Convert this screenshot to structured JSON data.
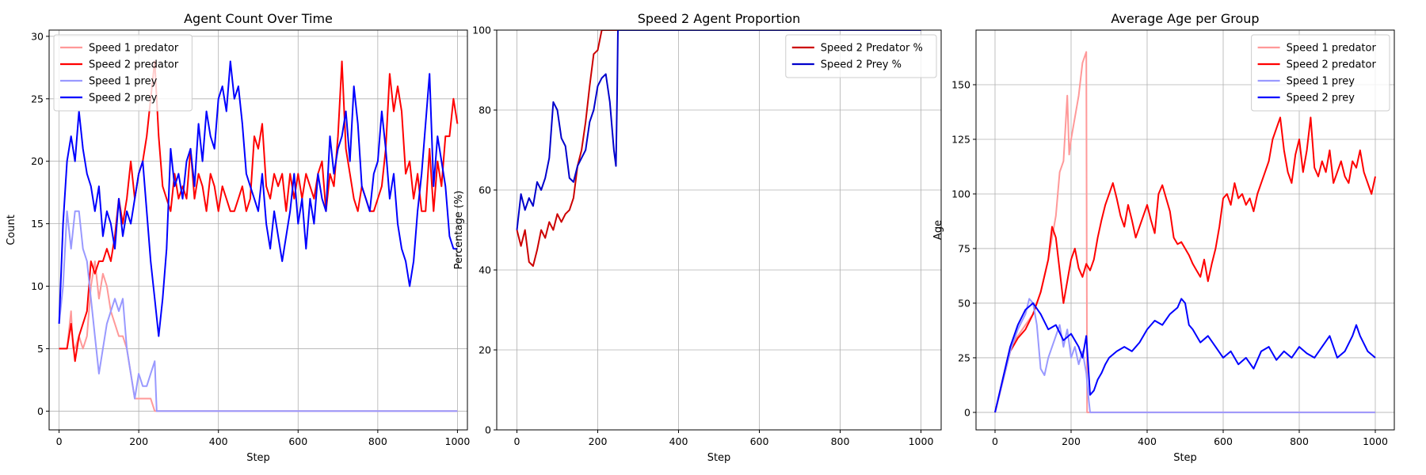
{
  "chart_data": [
    {
      "type": "line",
      "title": "Agent Count Over Time",
      "xlabel": "Step",
      "ylabel": "Count",
      "xlim": [
        -25,
        1025
      ],
      "ylim": [
        -1.5,
        30.5
      ],
      "xticks": [
        0,
        200,
        400,
        600,
        800,
        1000
      ],
      "yticks": [
        0,
        5,
        10,
        15,
        20,
        25,
        30
      ],
      "grid": true,
      "legend_position": "top-left",
      "series": [
        {
          "name": "Speed 1 predator",
          "color": "#ff9999",
          "x": [
            0,
            20,
            30,
            35,
            40,
            50,
            60,
            70,
            80,
            90,
            100,
            110,
            120,
            130,
            140,
            150,
            160,
            170,
            180,
            190,
            200,
            210,
            220,
            230,
            240,
            245,
            250,
            1000
          ],
          "y": [
            5,
            5,
            8,
            5,
            5,
            6,
            5,
            6,
            10,
            12,
            9,
            11,
            10,
            8,
            7,
            6,
            6,
            5,
            3,
            1,
            1,
            1,
            1,
            1,
            0,
            0,
            0,
            0
          ]
        },
        {
          "name": "Speed 2 predator",
          "color": "#ff0000",
          "x": [
            0,
            10,
            20,
            30,
            40,
            50,
            60,
            70,
            80,
            90,
            100,
            110,
            120,
            130,
            140,
            150,
            160,
            170,
            180,
            190,
            200,
            210,
            220,
            230,
            240,
            250,
            260,
            270,
            280,
            290,
            300,
            310,
            320,
            330,
            340,
            350,
            360,
            370,
            380,
            390,
            400,
            410,
            420,
            430,
            440,
            450,
            460,
            470,
            480,
            490,
            500,
            510,
            520,
            530,
            540,
            550,
            560,
            570,
            580,
            590,
            600,
            610,
            620,
            630,
            640,
            650,
            660,
            670,
            680,
            690,
            700,
            710,
            720,
            730,
            740,
            750,
            760,
            770,
            780,
            790,
            800,
            810,
            820,
            830,
            840,
            850,
            860,
            870,
            880,
            890,
            900,
            910,
            920,
            930,
            940,
            950,
            960,
            970,
            980,
            990,
            1000
          ],
          "y": [
            5,
            5,
            5,
            7,
            4,
            6,
            7,
            8,
            12,
            11,
            12,
            12,
            13,
            12,
            14,
            17,
            15,
            17,
            20,
            17,
            19,
            20,
            22,
            25,
            28,
            22,
            18,
            17,
            16,
            19,
            17,
            18,
            17,
            21,
            17,
            19,
            18,
            16,
            19,
            18,
            16,
            18,
            17,
            16,
            16,
            17,
            18,
            16,
            17,
            22,
            21,
            23,
            18,
            17,
            19,
            18,
            19,
            16,
            19,
            17,
            19,
            17,
            19,
            18,
            17,
            19,
            20,
            16,
            19,
            18,
            22,
            28,
            21,
            19,
            17,
            16,
            18,
            17,
            16,
            16,
            17,
            18,
            21,
            27,
            24,
            26,
            24,
            19,
            20,
            17,
            19,
            16,
            16,
            21,
            16,
            20,
            18,
            22,
            22,
            25,
            23
          ]
        },
        {
          "name": "Speed 1 prey",
          "color": "#9999ff",
          "x": [
            0,
            10,
            20,
            30,
            40,
            50,
            60,
            70,
            80,
            90,
            100,
            110,
            120,
            130,
            140,
            150,
            160,
            170,
            180,
            190,
            200,
            210,
            220,
            230,
            240,
            245,
            250,
            1000
          ],
          "y": [
            7,
            10,
            16,
            13,
            16,
            16,
            13,
            12,
            9,
            6,
            3,
            5,
            7,
            8,
            9,
            8,
            9,
            5,
            3,
            1,
            3,
            2,
            2,
            3,
            4,
            0,
            0,
            0
          ]
        },
        {
          "name": "Speed 2 prey",
          "color": "#0000ff",
          "x": [
            0,
            10,
            20,
            30,
            40,
            50,
            60,
            70,
            80,
            90,
            100,
            110,
            120,
            130,
            140,
            150,
            160,
            170,
            180,
            190,
            200,
            210,
            220,
            230,
            240,
            250,
            260,
            270,
            280,
            290,
            300,
            310,
            320,
            330,
            340,
            350,
            360,
            370,
            380,
            390,
            400,
            410,
            420,
            430,
            440,
            450,
            460,
            470,
            480,
            490,
            500,
            510,
            520,
            530,
            540,
            550,
            560,
            570,
            580,
            590,
            600,
            610,
            620,
            630,
            640,
            650,
            660,
            670,
            680,
            690,
            700,
            710,
            720,
            730,
            740,
            750,
            760,
            770,
            780,
            790,
            800,
            810,
            820,
            830,
            840,
            850,
            860,
            870,
            880,
            890,
            900,
            910,
            920,
            930,
            940,
            950,
            960,
            970,
            980,
            990,
            1000
          ],
          "y": [
            7,
            15,
            20,
            22,
            20,
            24,
            21,
            19,
            18,
            16,
            18,
            14,
            16,
            15,
            13,
            17,
            14,
            16,
            15,
            17,
            19,
            20,
            16,
            12,
            9,
            6,
            9,
            13,
            21,
            18,
            19,
            17,
            20,
            21,
            18,
            23,
            20,
            24,
            22,
            21,
            25,
            26,
            24,
            28,
            25,
            26,
            23,
            19,
            18,
            17,
            16,
            19,
            15,
            13,
            16,
            14,
            12,
            14,
            16,
            19,
            15,
            17,
            13,
            17,
            15,
            19,
            17,
            16,
            22,
            19,
            21,
            22,
            24,
            20,
            26,
            23,
            18,
            17,
            16,
            19,
            20,
            24,
            21,
            17,
            19,
            15,
            13,
            12,
            10,
            12,
            16,
            19,
            23,
            27,
            18,
            22,
            20,
            18,
            14,
            13,
            13
          ]
        }
      ]
    },
    {
      "type": "line",
      "title": "Speed 2 Agent Proportion",
      "xlabel": "Step",
      "ylabel": "Percentage (%)",
      "xlim": [
        -50,
        1050
      ],
      "ylim": [
        0,
        100
      ],
      "xticks": [
        0,
        200,
        400,
        600,
        800,
        1000
      ],
      "yticks": [
        0,
        20,
        40,
        60,
        80,
        100
      ],
      "grid": true,
      "legend_position": "top-right",
      "series": [
        {
          "name": "Speed 2 Predator %",
          "color": "#cc0000",
          "x": [
            0,
            10,
            20,
            30,
            40,
            50,
            60,
            70,
            80,
            90,
            100,
            110,
            120,
            130,
            140,
            150,
            160,
            170,
            180,
            190,
            200,
            210,
            220,
            230,
            240,
            1000
          ],
          "y": [
            50,
            46,
            50,
            42,
            41,
            45,
            50,
            48,
            52,
            50,
            54,
            52,
            54,
            55,
            58,
            66,
            70,
            77,
            86,
            94,
            95,
            100,
            100,
            100,
            100,
            100
          ]
        },
        {
          "name": "Speed 2 Prey %",
          "color": "#0000cc",
          "x": [
            0,
            10,
            20,
            30,
            40,
            50,
            60,
            70,
            80,
            90,
            100,
            110,
            120,
            130,
            140,
            150,
            160,
            170,
            180,
            190,
            200,
            210,
            220,
            230,
            240,
            245,
            248,
            250,
            1000
          ],
          "y": [
            50,
            59,
            55,
            58,
            56,
            62,
            60,
            63,
            68,
            82,
            80,
            73,
            71,
            63,
            62,
            66,
            68,
            70,
            77,
            80,
            86,
            88,
            89,
            82,
            70,
            66,
            84,
            100,
            100
          ]
        }
      ]
    },
    {
      "type": "line",
      "title": "Average Age per Group",
      "xlabel": "Step",
      "ylabel": "Age",
      "xlim": [
        -50,
        1050
      ],
      "ylim": [
        -8,
        175
      ],
      "xticks": [
        0,
        200,
        400,
        600,
        800,
        1000
      ],
      "yticks": [
        0,
        25,
        50,
        75,
        100,
        125,
        150
      ],
      "grid": true,
      "legend_position": "top-right",
      "series": [
        {
          "name": "Speed 1 predator",
          "color": "#ff9999",
          "x": [
            0,
            20,
            40,
            60,
            80,
            100,
            120,
            140,
            160,
            170,
            180,
            190,
            195,
            200,
            210,
            220,
            230,
            240,
            242,
            1000
          ],
          "y": [
            0,
            15,
            30,
            35,
            40,
            45,
            55,
            70,
            90,
            110,
            115,
            145,
            118,
            125,
            135,
            145,
            160,
            165,
            0,
            0
          ]
        },
        {
          "name": "Speed 2 predator",
          "color": "#ff0000",
          "x": [
            0,
            20,
            40,
            60,
            80,
            100,
            120,
            140,
            150,
            160,
            170,
            180,
            190,
            200,
            210,
            220,
            230,
            240,
            250,
            260,
            270,
            280,
            290,
            300,
            310,
            320,
            330,
            340,
            350,
            360,
            370,
            380,
            390,
            400,
            410,
            420,
            430,
            440,
            450,
            460,
            470,
            480,
            490,
            500,
            510,
            520,
            530,
            540,
            550,
            560,
            570,
            580,
            590,
            600,
            610,
            620,
            630,
            640,
            650,
            660,
            670,
            680,
            690,
            700,
            710,
            720,
            730,
            740,
            750,
            760,
            770,
            780,
            790,
            800,
            810,
            820,
            830,
            840,
            850,
            860,
            870,
            880,
            890,
            900,
            910,
            920,
            930,
            940,
            950,
            960,
            970,
            980,
            990,
            1000
          ],
          "y": [
            0,
            14,
            28,
            34,
            38,
            45,
            55,
            70,
            85,
            80,
            65,
            50,
            60,
            70,
            75,
            66,
            62,
            68,
            65,
            70,
            80,
            88,
            95,
            100,
            105,
            98,
            90,
            85,
            95,
            88,
            80,
            85,
            90,
            95,
            88,
            82,
            100,
            104,
            98,
            92,
            80,
            77,
            78,
            75,
            72,
            68,
            65,
            62,
            70,
            60,
            68,
            75,
            85,
            98,
            100,
            95,
            105,
            98,
            100,
            95,
            98,
            92,
            100,
            105,
            110,
            115,
            125,
            130,
            135,
            120,
            110,
            105,
            118,
            125,
            110,
            120,
            135,
            112,
            108,
            115,
            110,
            120,
            105,
            110,
            115,
            108,
            105,
            115,
            112,
            120,
            110,
            105,
            100,
            108
          ]
        },
        {
          "name": "Speed 1 prey",
          "color": "#9999ff",
          "x": [
            0,
            20,
            40,
            60,
            80,
            90,
            100,
            110,
            120,
            130,
            140,
            150,
            160,
            170,
            180,
            190,
            200,
            210,
            220,
            230,
            240,
            245,
            250,
            1000
          ],
          "y": [
            0,
            14,
            28,
            38,
            45,
            52,
            50,
            40,
            20,
            17,
            25,
            30,
            35,
            40,
            30,
            38,
            25,
            30,
            22,
            28,
            18,
            8,
            0,
            0
          ]
        },
        {
          "name": "Speed 2 prey",
          "color": "#0000ff",
          "x": [
            0,
            20,
            40,
            60,
            80,
            100,
            120,
            140,
            160,
            180,
            200,
            220,
            230,
            240,
            250,
            260,
            270,
            280,
            290,
            300,
            320,
            340,
            360,
            380,
            400,
            420,
            440,
            460,
            480,
            490,
            500,
            510,
            520,
            540,
            560,
            580,
            600,
            620,
            640,
            660,
            680,
            700,
            720,
            740,
            760,
            780,
            800,
            820,
            840,
            860,
            880,
            900,
            920,
            940,
            950,
            960,
            980,
            1000
          ],
          "y": [
            0,
            15,
            30,
            40,
            47,
            50,
            45,
            38,
            40,
            33,
            36,
            30,
            25,
            35,
            8,
            10,
            15,
            18,
            22,
            25,
            28,
            30,
            28,
            32,
            38,
            42,
            40,
            45,
            48,
            52,
            50,
            40,
            38,
            32,
            35,
            30,
            25,
            28,
            22,
            25,
            20,
            28,
            30,
            24,
            28,
            25,
            30,
            27,
            25,
            30,
            35,
            25,
            28,
            35,
            40,
            35,
            28,
            25
          ]
        }
      ]
    }
  ]
}
